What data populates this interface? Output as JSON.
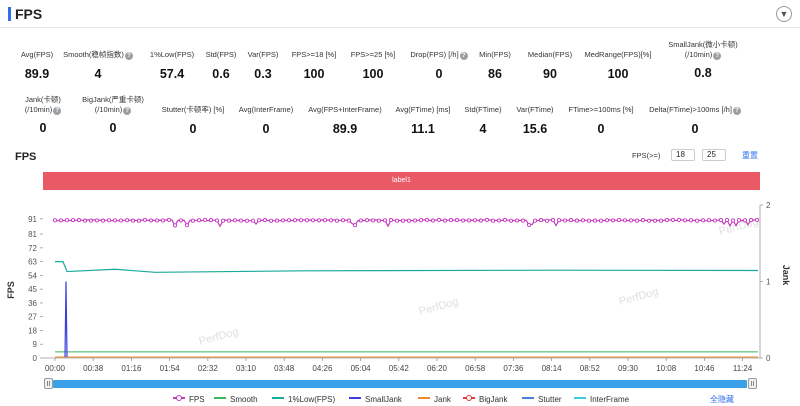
{
  "header": {
    "title": "FPS",
    "collapse_icon": "chevron-down-icon"
  },
  "metrics_row1": [
    {
      "label": "Avg(FPS)",
      "value": "89.9"
    },
    {
      "label": "Smooth(稳帧指数)",
      "value": "4",
      "help": true
    },
    {
      "label": "1%Low(FPS)",
      "value": "57.4"
    },
    {
      "label": "Std(FPS)",
      "value": "0.6"
    },
    {
      "label": "Var(FPS)",
      "value": "0.3"
    },
    {
      "label": "FPS>=18 [%]",
      "value": "100"
    },
    {
      "label": "FPS>=25 [%]",
      "value": "100"
    },
    {
      "label": "Drop(FPS) [/h]",
      "value": "0",
      "help": true
    },
    {
      "label": "Min(FPS)",
      "value": "86"
    },
    {
      "label": "Median(FPS)",
      "value": "90"
    },
    {
      "label": "MedRange(FPS)[%]",
      "value": "100"
    },
    {
      "label": "SmallJank(微小卡顿)",
      "label2": "(/10min)",
      "value": "0.8",
      "help": true
    }
  ],
  "metrics_row2": [
    {
      "label": "Jank(卡顿)",
      "label2": "(/10min)",
      "value": "0",
      "help": true
    },
    {
      "label": "BigJank(严重卡顿)",
      "label2": "(/10min)",
      "value": "0",
      "help": true
    },
    {
      "label": "Stutter(卡顿率) [%]",
      "value": "0"
    },
    {
      "label": "Avg(InterFrame)",
      "value": "0"
    },
    {
      "label": "Avg(FPS+InterFrame)",
      "value": "89.9"
    },
    {
      "label": "Avg(FTime) [ms]",
      "value": "11.1"
    },
    {
      "label": "Std(FTime)",
      "value": "4"
    },
    {
      "label": "Var(FTime)",
      "value": "15.6"
    },
    {
      "label": "FTime>=100ms [%]",
      "value": "0"
    },
    {
      "label": "Delta(FTime)>100ms [/h]",
      "value": "0",
      "help": true
    }
  ],
  "section": {
    "title": "FPS",
    "filter_label": "FPS(>=)",
    "filter_low": "18",
    "filter_high": "25",
    "reset_label": "重置"
  },
  "label_band": "label1",
  "chart_data": {
    "type": "line",
    "y_left": {
      "label": "FPS",
      "ticks": [
        0,
        9,
        18,
        27,
        36,
        45,
        54,
        63,
        72,
        81,
        91
      ],
      "range": [
        0,
        100
      ]
    },
    "y_right": {
      "label": "Jank",
      "ticks": [
        0,
        1,
        2
      ],
      "range": [
        0,
        2
      ]
    },
    "x_ticks": [
      "00:00",
      "00:38",
      "01:16",
      "01:54",
      "02:32",
      "03:10",
      "03:48",
      "04:26",
      "05:04",
      "05:42",
      "06:20",
      "06:58",
      "07:36",
      "08:14",
      "08:52",
      "09:30",
      "10:08",
      "10:46",
      "11:24"
    ],
    "x_range_seconds": [
      0,
      720
    ],
    "series": [
      {
        "name": "FPS",
        "color": "#c53bbf",
        "value": 90,
        "dip_min": 86
      },
      {
        "name": "Smooth",
        "color": "#3cb55b",
        "value": 4
      },
      {
        "name": "1%Low(FPS)",
        "color": "#1aaa9a",
        "start": 63,
        "level": 57
      },
      {
        "name": "SmallJank",
        "color": "#3a3fdc",
        "spike_value": 1
      },
      {
        "name": "Jank",
        "color": "#f08a2a",
        "value": 0
      },
      {
        "name": "BigJank",
        "color": "#e43a36",
        "value": 0
      },
      {
        "name": "Stutter",
        "color": "#4a7fd6",
        "value": 0
      },
      {
        "name": "InterFrame",
        "color": "#3ccde0",
        "value": 0
      }
    ],
    "watermark": "PerfDog"
  },
  "legend": {
    "items": [
      {
        "name": "FPS",
        "color": "#c53bbf",
        "marker": true
      },
      {
        "name": "Smooth",
        "color": "#3cb55b"
      },
      {
        "name": "1%Low(FPS)",
        "color": "#1aaa9a"
      },
      {
        "name": "SmallJank",
        "color": "#3a3fdc"
      },
      {
        "name": "Jank",
        "color": "#f08a2a"
      },
      {
        "name": "BigJank",
        "color": "#e43a36",
        "marker": true
      },
      {
        "name": "Stutter",
        "color": "#4a7fd6"
      },
      {
        "name": "InterFrame",
        "color": "#3ccde0"
      }
    ],
    "hide_all": "全隐藏"
  }
}
